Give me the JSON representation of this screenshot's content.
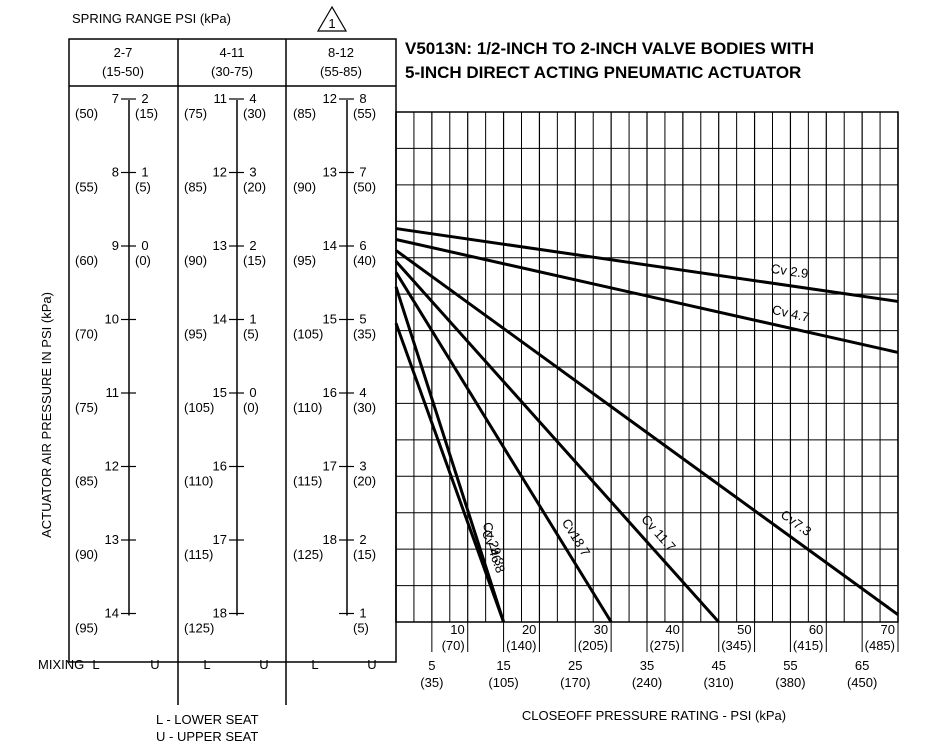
{
  "spring_header": "SPRING RANGE PSI (kPa)",
  "note_marker": "1",
  "spring_ranges": [
    {
      "psi": "2-7",
      "kpa": "(15-50)"
    },
    {
      "psi": "4-11",
      "kpa": "(30-75)"
    },
    {
      "psi": "8-12",
      "kpa": "(55-85)"
    }
  ],
  "columns": [
    {
      "rows": [
        {
          "lp": "7",
          "lk": "(50)",
          "rp": "2",
          "rk": "(15)"
        },
        {
          "lp": "8",
          "lk": "(55)",
          "rp": "1",
          "rk": "(5)"
        },
        {
          "lp": "9",
          "lk": "(60)",
          "rp": "0",
          "rk": "(0)"
        },
        {
          "lp": "10",
          "lk": "(70)",
          "rp": "",
          "rk": ""
        },
        {
          "lp": "11",
          "lk": "(75)",
          "rp": "",
          "rk": ""
        },
        {
          "lp": "12",
          "lk": "(85)",
          "rp": "",
          "rk": ""
        },
        {
          "lp": "13",
          "lk": "(90)",
          "rp": "",
          "rk": ""
        },
        {
          "lp": "14",
          "lk": "(95)",
          "rp": "",
          "rk": ""
        }
      ]
    },
    {
      "rows": [
        {
          "lp": "11",
          "lk": "(75)",
          "rp": "4",
          "rk": "(30)"
        },
        {
          "lp": "12",
          "lk": "(85)",
          "rp": "3",
          "rk": "(20)"
        },
        {
          "lp": "13",
          "lk": "(90)",
          "rp": "2",
          "rk": "(15)"
        },
        {
          "lp": "14",
          "lk": "(95)",
          "rp": "1",
          "rk": "(5)"
        },
        {
          "lp": "15",
          "lk": "(105)",
          "rp": "0",
          "rk": "(0)"
        },
        {
          "lp": "16",
          "lk": "(110)",
          "rp": "",
          "rk": ""
        },
        {
          "lp": "17",
          "lk": "(115)",
          "rp": "",
          "rk": ""
        },
        {
          "lp": "18",
          "lk": "(125)",
          "rp": "",
          "rk": ""
        }
      ]
    },
    {
      "rows": [
        {
          "lp": "12",
          "lk": "(85)",
          "rp": "8",
          "rk": "(55)"
        },
        {
          "lp": "13",
          "lk": "(90)",
          "rp": "7",
          "rk": "(50)"
        },
        {
          "lp": "14",
          "lk": "(95)",
          "rp": "6",
          "rk": "(40)"
        },
        {
          "lp": "15",
          "lk": "(105)",
          "rp": "5",
          "rk": "(35)"
        },
        {
          "lp": "16",
          "lk": "(110)",
          "rp": "4",
          "rk": "(30)"
        },
        {
          "lp": "17",
          "lk": "(115)",
          "rp": "3",
          "rk": "(20)"
        },
        {
          "lp": "18",
          "lk": "(125)",
          "rp": "2",
          "rk": "(15)"
        },
        {
          "lp": "",
          "lk": "",
          "rp": "1",
          "rk": "(5)"
        }
      ]
    }
  ],
  "mixing_label": "MIXING",
  "seat_labels": [
    "L",
    "U"
  ],
  "legend_lower": "L - LOWER SEAT",
  "legend_upper": "U - UPPER SEAT",
  "y_axis_label": "ACTUATOR AIR PRESSURE IN PSI (kPa)",
  "chart_data": {
    "type": "line",
    "title_line1": "V5013N: 1/2-INCH TO 2-INCH VALVE BODIES WITH",
    "title_line2": "5-INCH DIRECT ACTING PNEUMATIC ACTUATOR",
    "xlabel": "CLOSEOFF PRESSURE RATING - PSI (kPa)",
    "xlim": [
      0,
      70
    ],
    "ylim": [
      0,
      14
    ],
    "grid": true,
    "x_ticks_upper": [
      {
        "v": 10,
        "psi": "10",
        "kpa": "(70)"
      },
      {
        "v": 20,
        "psi": "20",
        "kpa": "(140)"
      },
      {
        "v": 30,
        "psi": "30",
        "kpa": "(205)"
      },
      {
        "v": 40,
        "psi": "40",
        "kpa": "(275)"
      },
      {
        "v": 50,
        "psi": "50",
        "kpa": "(345)"
      },
      {
        "v": 60,
        "psi": "60",
        "kpa": "(415)"
      },
      {
        "v": 70,
        "psi": "70",
        "kpa": "(485)"
      }
    ],
    "x_ticks_lower": [
      {
        "v": 5,
        "psi": "5",
        "kpa": "(35)"
      },
      {
        "v": 15,
        "psi": "15",
        "kpa": "(105)"
      },
      {
        "v": 25,
        "psi": "25",
        "kpa": "(170)"
      },
      {
        "v": 35,
        "psi": "35",
        "kpa": "(240)"
      },
      {
        "v": 45,
        "psi": "45",
        "kpa": "(310)"
      },
      {
        "v": 55,
        "psi": "55",
        "kpa": "(380)"
      },
      {
        "v": 65,
        "psi": "65",
        "kpa": "(450)"
      }
    ],
    "series": [
      {
        "name": "Cv 2.9",
        "x": [
          0,
          70
        ],
        "y": [
          10.8,
          8.8
        ]
      },
      {
        "name": "Cv 4.7",
        "x": [
          0,
          70
        ],
        "y": [
          10.5,
          7.4
        ]
      },
      {
        "name": "Cv7.3",
        "x": [
          0,
          70
        ],
        "y": [
          10.2,
          0.2
        ]
      },
      {
        "name": "Cv 11.7",
        "x": [
          0,
          45
        ],
        "y": [
          9.9,
          0
        ]
      },
      {
        "name": "Cv18.7",
        "x": [
          0,
          30
        ],
        "y": [
          9.6,
          0
        ]
      },
      {
        "name": "Cv 29.3",
        "x": [
          0,
          15
        ],
        "y": [
          9.2,
          0
        ]
      },
      {
        "name": "Cv 46.8",
        "x": [
          0,
          15
        ],
        "y": [
          8.2,
          0
        ]
      }
    ]
  }
}
